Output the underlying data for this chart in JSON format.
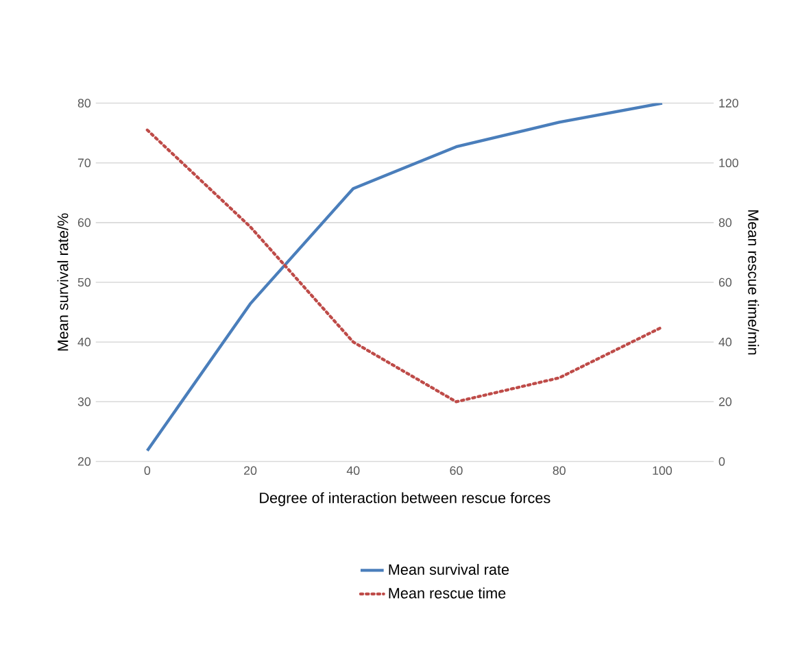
{
  "chart_data": {
    "type": "line",
    "xlabel": "Degree of interaction between rescue forces",
    "ylabel": "Mean survival rate/%",
    "y2label": "Mean rescue time/min",
    "categories": [
      "0",
      "20",
      "40",
      "60",
      "80",
      "100"
    ],
    "series": [
      {
        "name": "Mean survival rate",
        "color": "#4a7ebb",
        "values": [
          21.8,
          46.4,
          65.7,
          72.7,
          76.8,
          80
        ],
        "line_style": "solid"
      },
      {
        "name": "Mean rescue time",
        "color": "#be4b48",
        "values": [
          111,
          78.6,
          40,
          20,
          28,
          45
        ],
        "axis": "y2",
        "line_style": "dotted"
      }
    ],
    "ylim": [
      20,
      80
    ],
    "yticks": [
      20,
      30,
      40,
      50,
      60,
      70,
      80
    ],
    "y2lim": [
      0,
      120
    ],
    "y2ticks": [
      0,
      20,
      40,
      60,
      80,
      100,
      120
    ],
    "grid": "y",
    "legend": "bottom",
    "marker": "none"
  }
}
